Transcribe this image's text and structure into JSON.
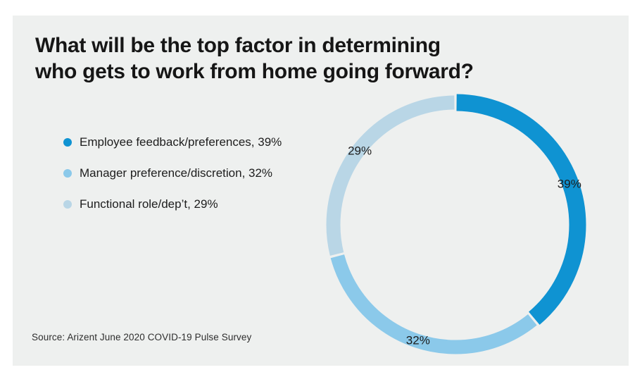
{
  "page": {
    "background_hex": "#ffffff",
    "panel_background_hex": "#eef0ef"
  },
  "title": {
    "lines": [
      "What will be the top factor in determining",
      "who gets to work from home going forward?"
    ]
  },
  "legend": {
    "items": [
      {
        "text": "Employee feedback/preferences, 39%",
        "color": "#0f93d2"
      },
      {
        "text": "Manager preference/discretion, 32%",
        "color": "#8bc9ea"
      },
      {
        "text": "Functional role/dep’t, 29%",
        "color": "#b9d6e6"
      }
    ]
  },
  "source": "Source: Arizent June 2020 COVID-19 Pulse Survey",
  "chart_data": {
    "type": "pie",
    "subtype": "donut-ring",
    "title": "What will be the top factor in determining who gets to work from home going forward?",
    "categories": [
      "Employee feedback/preferences",
      "Manager preference/discretion",
      "Functional role/dep’t"
    ],
    "values": [
      39,
      32,
      29
    ],
    "unit": "%",
    "slice_labels": [
      "39%",
      "32%",
      "29%"
    ],
    "colors": [
      "#0f93d2",
      "#8bc9ea",
      "#b9d6e6"
    ],
    "start_angle_deg": 0,
    "direction": "clockwise",
    "legend_position": "left",
    "source": "Source: Arizent June 2020 COVID-19 Pulse Survey"
  }
}
